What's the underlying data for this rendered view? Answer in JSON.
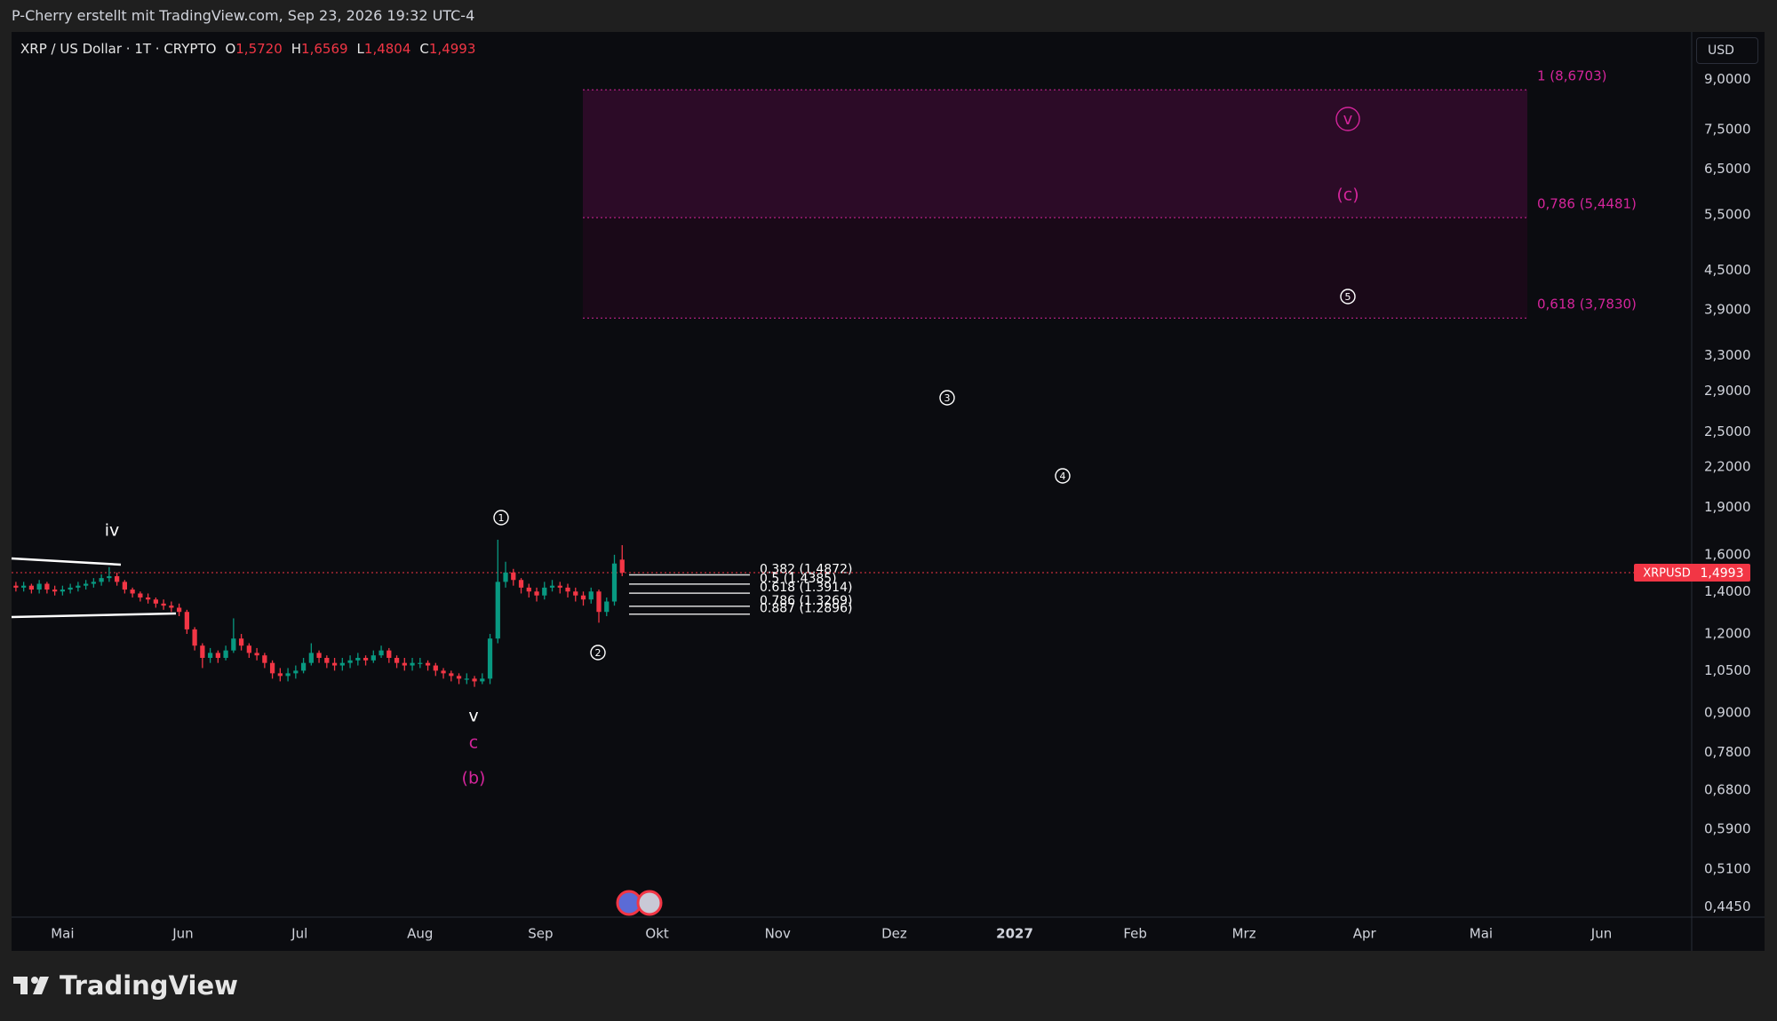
{
  "header": {
    "attribution": "P-Cherry erstellt mit TradingView.com, Sep 23, 2026 19:32 UTC-4"
  },
  "footer": {
    "logo": "TradingView"
  },
  "chart_data": {
    "type": "candlestick",
    "title": "XRP / US Dollar · 1T · CRYPTO",
    "legend": [
      {
        "key": "O",
        "label": "1,5720"
      },
      {
        "key": "H",
        "label": "1,6569"
      },
      {
        "key": "L",
        "label": "1,4804"
      },
      {
        "key": "C",
        "label": "1,4993"
      }
    ],
    "currency": "USD",
    "symbol": "XRPUSD",
    "last_price": {
      "value": 1.4993,
      "label": "1,4993"
    },
    "up_color": "#089981",
    "down_color": "#f23645",
    "log_scale": true,
    "grid": false,
    "open": [
      1.43,
      1.42,
      1.43,
      1.41,
      1.44,
      1.41,
      1.4,
      1.41,
      1.42,
      1.43,
      1.44,
      1.45,
      1.47,
      1.48,
      1.45,
      1.41,
      1.39,
      1.37,
      1.36,
      1.34,
      1.33,
      1.32,
      1.3,
      1.22,
      1.15,
      1.1,
      1.12,
      1.1,
      1.13,
      1.18,
      1.15,
      1.12,
      1.11,
      1.08,
      1.04,
      1.03,
      1.04,
      1.05,
      1.08,
      1.12,
      1.1,
      1.08,
      1.07,
      1.08,
      1.09,
      1.1,
      1.09,
      1.11,
      1.13,
      1.1,
      1.08,
      1.07,
      1.08,
      1.08,
      1.07,
      1.05,
      1.04,
      1.03,
      1.02,
      1.02,
      1.01,
      1.02,
      1.18,
      1.45,
      1.5,
      1.46,
      1.42,
      1.4,
      1.38,
      1.42,
      1.43,
      1.42,
      1.4,
      1.38,
      1.36,
      1.4,
      1.3,
      1.35,
      1.572
    ],
    "high": [
      1.45,
      1.45,
      1.44,
      1.46,
      1.45,
      1.43,
      1.43,
      1.44,
      1.45,
      1.46,
      1.47,
      1.49,
      1.53,
      1.5,
      1.46,
      1.42,
      1.4,
      1.39,
      1.37,
      1.36,
      1.35,
      1.34,
      1.31,
      1.23,
      1.16,
      1.14,
      1.13,
      1.15,
      1.27,
      1.2,
      1.16,
      1.14,
      1.12,
      1.09,
      1.06,
      1.06,
      1.07,
      1.1,
      1.16,
      1.13,
      1.11,
      1.1,
      1.1,
      1.11,
      1.12,
      1.11,
      1.13,
      1.15,
      1.14,
      1.11,
      1.1,
      1.1,
      1.1,
      1.09,
      1.08,
      1.06,
      1.05,
      1.04,
      1.04,
      1.03,
      1.04,
      1.2,
      1.69,
      1.56,
      1.52,
      1.47,
      1.44,
      1.42,
      1.45,
      1.46,
      1.45,
      1.44,
      1.42,
      1.4,
      1.42,
      1.41,
      1.37,
      1.6,
      1.6569
    ],
    "low": [
      1.4,
      1.4,
      1.39,
      1.39,
      1.39,
      1.38,
      1.38,
      1.39,
      1.4,
      1.41,
      1.42,
      1.43,
      1.45,
      1.43,
      1.39,
      1.37,
      1.35,
      1.34,
      1.32,
      1.31,
      1.3,
      1.28,
      1.2,
      1.13,
      1.06,
      1.08,
      1.08,
      1.09,
      1.12,
      1.13,
      1.1,
      1.09,
      1.06,
      1.02,
      1.01,
      1.01,
      1.02,
      1.04,
      1.07,
      1.08,
      1.06,
      1.05,
      1.05,
      1.06,
      1.07,
      1.07,
      1.08,
      1.1,
      1.08,
      1.06,
      1.05,
      1.05,
      1.06,
      1.05,
      1.03,
      1.02,
      1.01,
      1.0,
      1.0,
      0.99,
      1.0,
      1.0,
      1.16,
      1.42,
      1.43,
      1.39,
      1.37,
      1.35,
      1.36,
      1.4,
      1.39,
      1.37,
      1.35,
      1.33,
      1.34,
      1.25,
      1.28,
      1.33,
      1.4804
    ],
    "close": [
      1.42,
      1.43,
      1.41,
      1.44,
      1.41,
      1.4,
      1.41,
      1.42,
      1.43,
      1.44,
      1.45,
      1.47,
      1.48,
      1.45,
      1.41,
      1.39,
      1.37,
      1.36,
      1.34,
      1.33,
      1.32,
      1.3,
      1.22,
      1.15,
      1.1,
      1.12,
      1.1,
      1.13,
      1.18,
      1.15,
      1.12,
      1.11,
      1.08,
      1.04,
      1.03,
      1.04,
      1.05,
      1.08,
      1.12,
      1.1,
      1.08,
      1.07,
      1.08,
      1.09,
      1.1,
      1.09,
      1.11,
      1.13,
      1.1,
      1.08,
      1.07,
      1.08,
      1.08,
      1.07,
      1.05,
      1.04,
      1.03,
      1.02,
      1.02,
      1.01,
      1.02,
      1.18,
      1.45,
      1.5,
      1.46,
      1.42,
      1.4,
      1.38,
      1.42,
      1.43,
      1.42,
      1.4,
      1.38,
      1.36,
      1.4,
      1.3,
      1.35,
      1.55,
      1.4993
    ],
    "xlim": [
      -0.56,
      215.6
    ],
    "xticks": [
      {
        "value": 6,
        "label": "Mai"
      },
      {
        "value": 21.5,
        "label": "Jun"
      },
      {
        "value": 36.5,
        "label": "Jul"
      },
      {
        "value": 52,
        "label": "Aug"
      },
      {
        "value": 67.5,
        "label": "Sep"
      },
      {
        "value": 82.5,
        "label": "Okt"
      },
      {
        "value": 98,
        "label": "Nov"
      },
      {
        "value": 113,
        "label": "Dez"
      },
      {
        "value": 128.5,
        "label": "2027",
        "bold": true
      },
      {
        "value": 144,
        "label": "Feb"
      },
      {
        "value": 158,
        "label": "Mrz"
      },
      {
        "value": 173.5,
        "label": "Apr"
      },
      {
        "value": 188.5,
        "label": "Mai"
      },
      {
        "value": 204,
        "label": "Jun"
      }
    ],
    "ylim": [
      0.4287,
      10.7
    ],
    "yticks": [
      {
        "value": 9,
        "label": "9,0000"
      },
      {
        "value": 7.5,
        "label": "7,5000"
      },
      {
        "value": 6.5,
        "label": "6,5000"
      },
      {
        "value": 5.5,
        "label": "5,5000"
      },
      {
        "value": 4.5,
        "label": "4,5000"
      },
      {
        "value": 3.9,
        "label": "3,9000"
      },
      {
        "value": 3.3,
        "label": "3,3000"
      },
      {
        "value": 2.9,
        "label": "2,9000"
      },
      {
        "value": 2.5,
        "label": "2,5000"
      },
      {
        "value": 2.2,
        "label": "2,2000"
      },
      {
        "value": 1.9,
        "label": "1,9000"
      },
      {
        "value": 1.6,
        "label": "1,6000"
      },
      {
        "value": 1.4,
        "label": "1,4000"
      },
      {
        "value": 1.2,
        "label": "1,2000"
      },
      {
        "value": 1.05,
        "label": "1,0500"
      },
      {
        "value": 0.9,
        "label": "0,9000"
      },
      {
        "value": 0.78,
        "label": "0,7800"
      },
      {
        "value": 0.68,
        "label": "0,6800"
      },
      {
        "value": 0.59,
        "label": "0,5900"
      },
      {
        "value": 0.51,
        "label": "0,5100"
      },
      {
        "value": 0.445,
        "label": "0,4450"
      }
    ],
    "fib_target_levels": [
      {
        "value": 8.6703,
        "label": "1 (8,6703)"
      },
      {
        "value": 5.4481,
        "label": "0,786 (5,4481)"
      },
      {
        "value": 3.783,
        "label": "0,618 (3,7830)"
      }
    ],
    "fib_zone_colors": [
      "#2c0b27",
      "#1a0918"
    ],
    "fib_color": "#d4259b",
    "fib_retracement_levels": [
      {
        "value": 1.4872,
        "label": "0.382 (1.4872)"
      },
      {
        "value": 1.4385,
        "label": "0.5 (1.4385)"
      },
      {
        "value": 1.3914,
        "label": "0.618 (1.3914)"
      },
      {
        "value": 1.3269,
        "label": "0.786 (1.3269)"
      },
      {
        "value": 1.2896,
        "label": "0.887 (1.2896)"
      }
    ],
    "annotations": [
      {
        "text": "iv",
        "color": "#ffffff"
      },
      {
        "text": "1",
        "color": "#ffffff",
        "circled": true
      },
      {
        "text": "2",
        "color": "#ffffff",
        "circled": true
      },
      {
        "text": "3",
        "color": "#ffffff",
        "circled": true
      },
      {
        "text": "4",
        "color": "#ffffff",
        "circled": true
      },
      {
        "text": "5",
        "color": "#ffffff",
        "circled": true
      },
      {
        "text": "v",
        "color": "#ffffff"
      },
      {
        "text": "c",
        "color": "#d4259b"
      },
      {
        "text": "(b)",
        "color": "#d4259b"
      },
      {
        "text": "v",
        "color": "#d4259b",
        "circled": true
      },
      {
        "text": "(c)",
        "color": "#d4259b"
      }
    ]
  }
}
